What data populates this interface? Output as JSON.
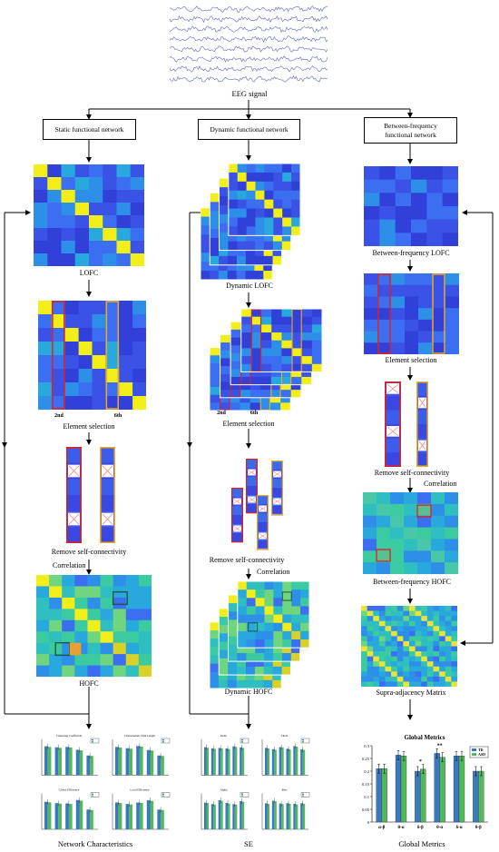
{
  "top": {
    "eeg_label": "EEG signal"
  },
  "columns": {
    "static": {
      "header": "Static functional network",
      "lofc": "LOFC",
      "tag_2nd": "2nd",
      "tag_6th": "6th",
      "element_selection": "Element selection",
      "remove_self": "Remove self-connectivity",
      "correlation": "Correlation",
      "hofc": "HOFC",
      "bottom": "Network Characteristics",
      "mini_titles": [
        "Clustering Coefficient",
        "Characteristic Path Length",
        "Global Efficiency",
        "Local Efficiency"
      ]
    },
    "dynamic": {
      "header": "Dynamic functional network",
      "lofc": "Dynamic LOFC",
      "tag_2nd": "2nd",
      "tag_6th": "6th",
      "element_selection": "Element selection",
      "remove_self": "Remove self-connectivity",
      "correlation": "Correlation",
      "hofc": "Dynamic HOFC",
      "bottom": "SE",
      "mini_titles": [
        "Delta",
        "Theta",
        "Alpha",
        "Beta"
      ]
    },
    "between": {
      "header": "Between-frequency functional network",
      "lofc": "Between-frequency  LOFC",
      "element_selection": "Element selection",
      "remove_self": "Remove self-connectivity",
      "correlation": "Correlation",
      "hofc": "Between-frequency  HOFC",
      "supra": "Supra-adjacency Matrix",
      "bottom": "Global Metrics"
    }
  },
  "global_metrics_chart": {
    "type": "bar",
    "title": "Global Metrics",
    "categories": [
      "α-β",
      "θ-α",
      "δ-β",
      "θ-α",
      "δ-α",
      "θ-β"
    ],
    "series": [
      {
        "name": "TD",
        "color": "#3a78c4",
        "values": [
          0.21,
          0.263,
          0.2,
          0.27,
          0.26,
          0.2
        ]
      },
      {
        "name": "ASD",
        "color": "#52b85a",
        "values": [
          0.21,
          0.26,
          0.208,
          0.255,
          0.26,
          0.2
        ]
      }
    ],
    "ylim": [
      0,
      0.3
    ],
    "yticks": [
      "0",
      "0.05",
      "0.1",
      "0.15",
      "0.2",
      "0.25",
      "0.3"
    ],
    "significance": [
      "",
      "",
      "*",
      "**",
      "",
      ""
    ]
  },
  "colors": {
    "matrix_dark": "#3a44e0",
    "matrix_mid": "#2e9be0",
    "matrix_teal": "#39c4a8",
    "matrix_yellow": "#f2ee1a",
    "select_red": "#e02020",
    "select_orange": "#f0a820",
    "eeg_line": "#5a6ab8"
  }
}
